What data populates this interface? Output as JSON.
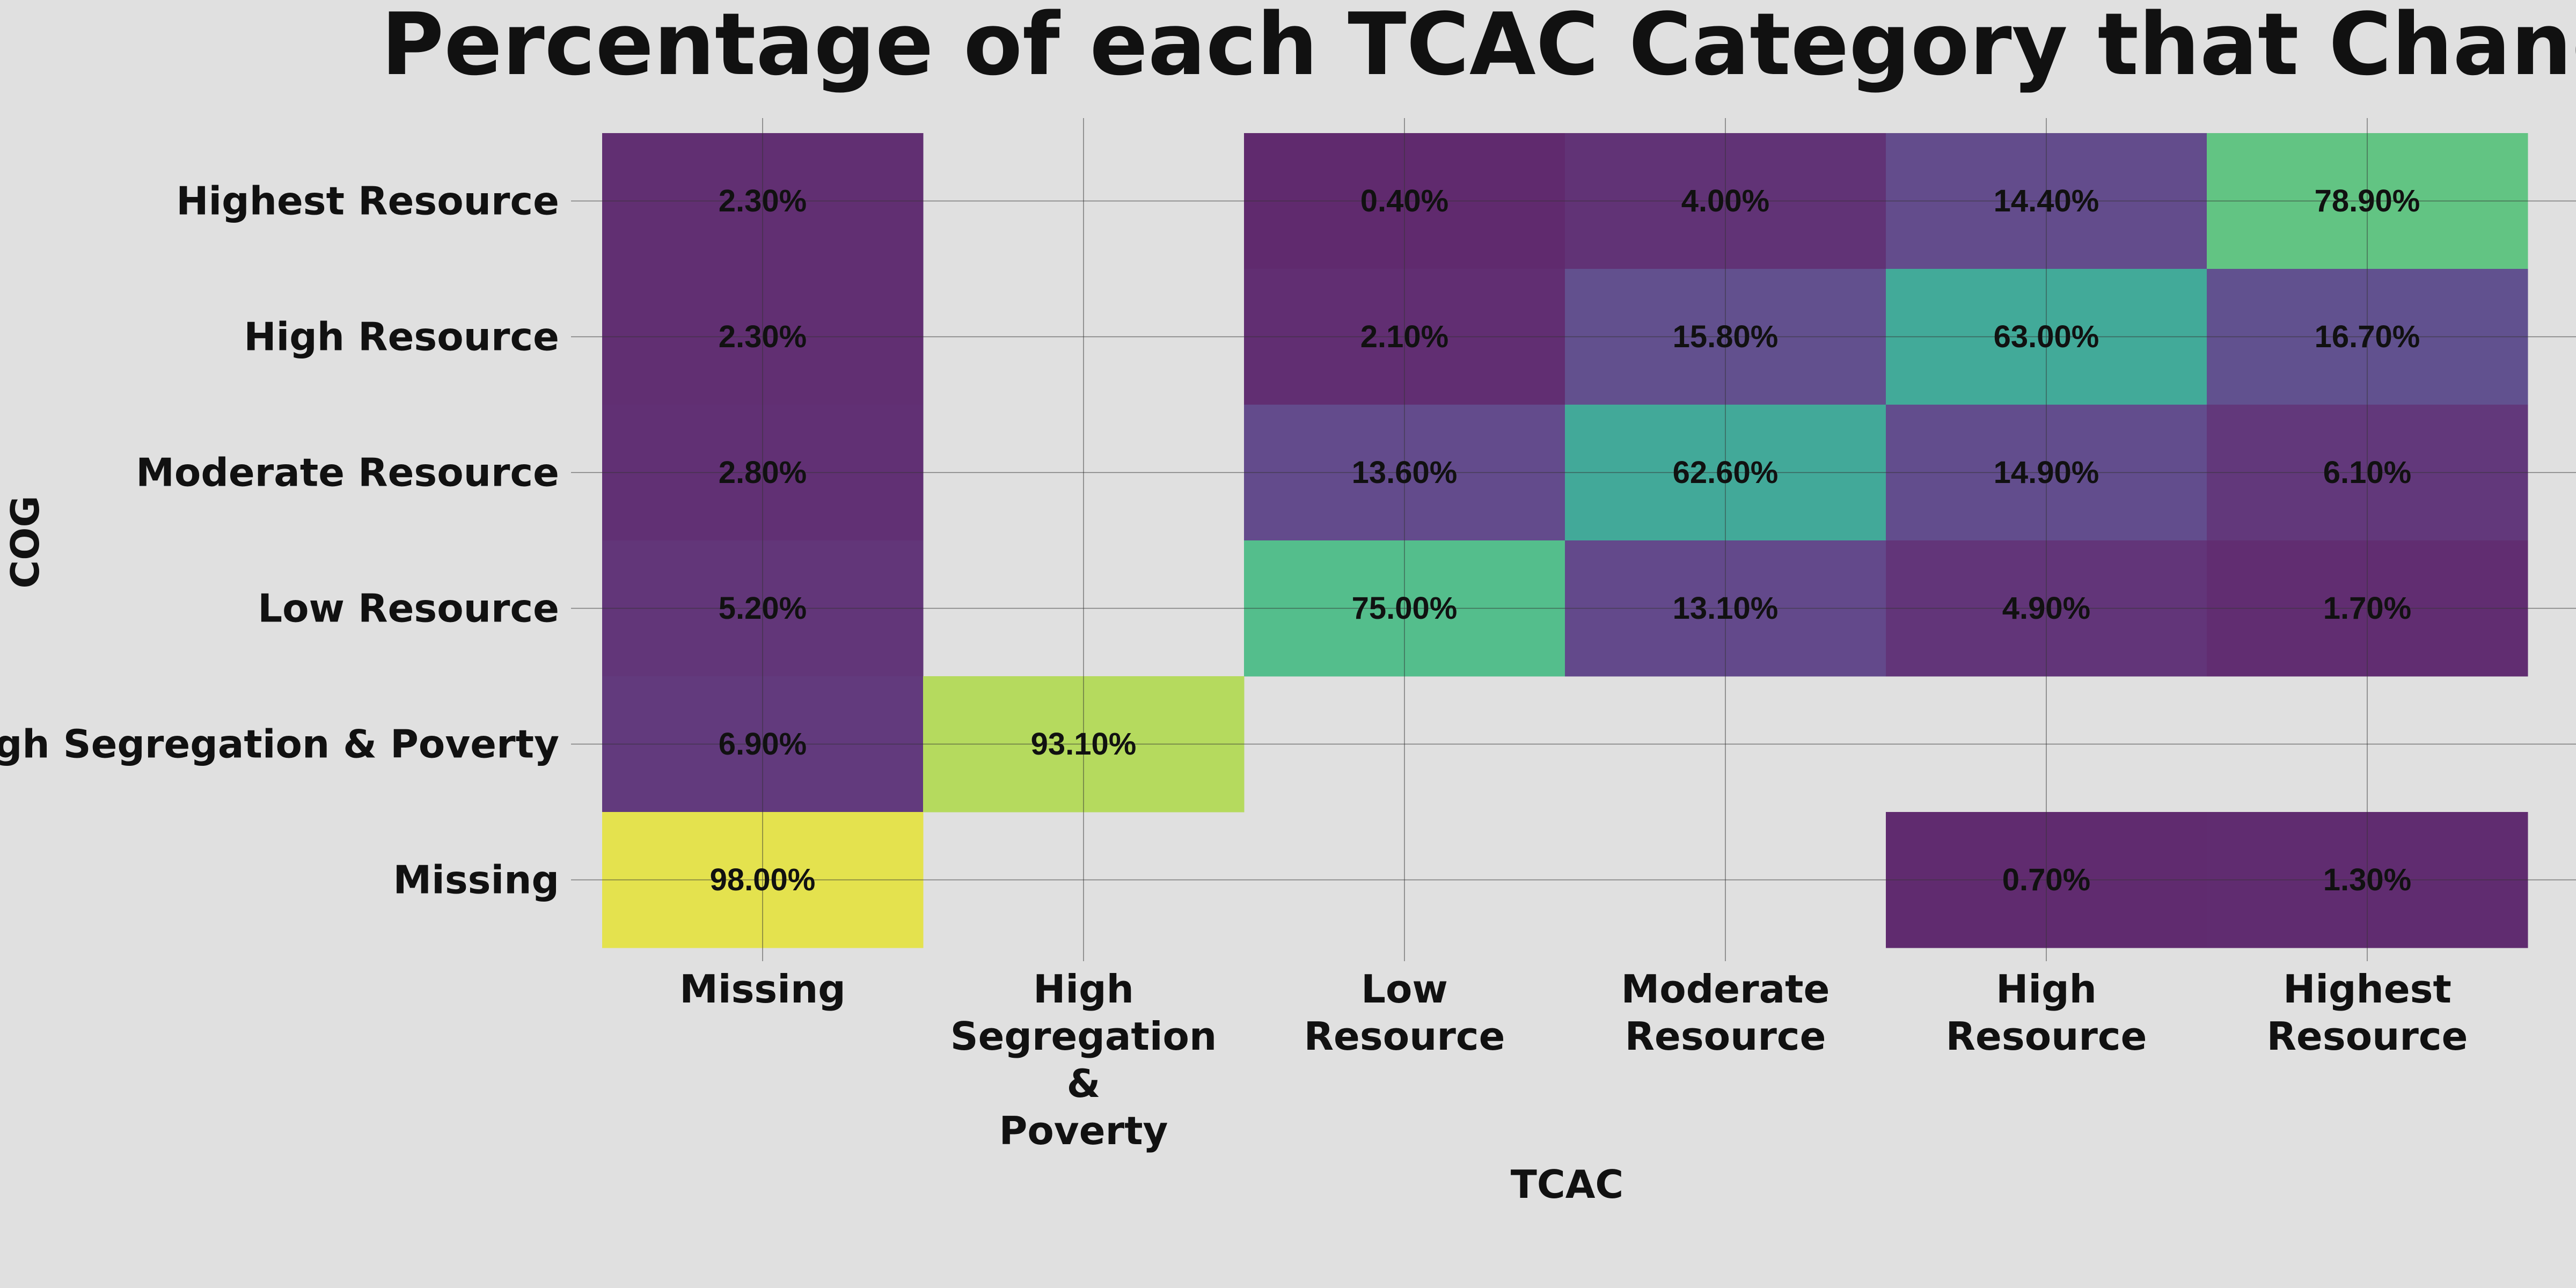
{
  "chart_data": {
    "type": "heatmap",
    "title": "Percentage of each TCAC Category that Changed",
    "xlabel": "TCAC",
    "ylabel": "COG",
    "x_categories": [
      "Missing",
      "High Segregation & Poverty",
      "Low Resource",
      "Moderate Resource",
      "High Resource",
      "Highest Resource"
    ],
    "y_categories": [
      "Highest Resource",
      "High Resource",
      "Moderate Resource",
      "Low Resource",
      "High Segregation & Poverty",
      "Missing"
    ],
    "values": [
      [
        2.3,
        null,
        0.4,
        4.0,
        14.4,
        78.9
      ],
      [
        2.3,
        null,
        2.1,
        15.8,
        63.0,
        16.7
      ],
      [
        2.8,
        null,
        13.6,
        62.6,
        14.9,
        6.1
      ],
      [
        5.2,
        null,
        75.0,
        13.1,
        4.9,
        1.7
      ],
      [
        6.9,
        93.1,
        null,
        null,
        null,
        null
      ],
      [
        98.0,
        null,
        null,
        null,
        0.7,
        1.3
      ]
    ],
    "value_labels": [
      [
        "2.30%",
        null,
        "0.40%",
        "4.00%",
        "14.40%",
        "78.90%"
      ],
      [
        "2.30%",
        null,
        "2.10%",
        "15.80%",
        "63.00%",
        "16.70%"
      ],
      [
        "2.80%",
        null,
        "13.60%",
        "62.60%",
        "14.90%",
        "6.10%"
      ],
      [
        "5.20%",
        null,
        "75.00%",
        "13.10%",
        "4.90%",
        "1.70%"
      ],
      [
        "6.90%",
        "93.10%",
        null,
        null,
        null,
        null
      ],
      [
        "98.00%",
        null,
        null,
        null,
        "0.70%",
        "1.30%"
      ]
    ],
    "colormap": "viridis",
    "value_range": [
      0,
      100
    ],
    "grid": true
  }
}
